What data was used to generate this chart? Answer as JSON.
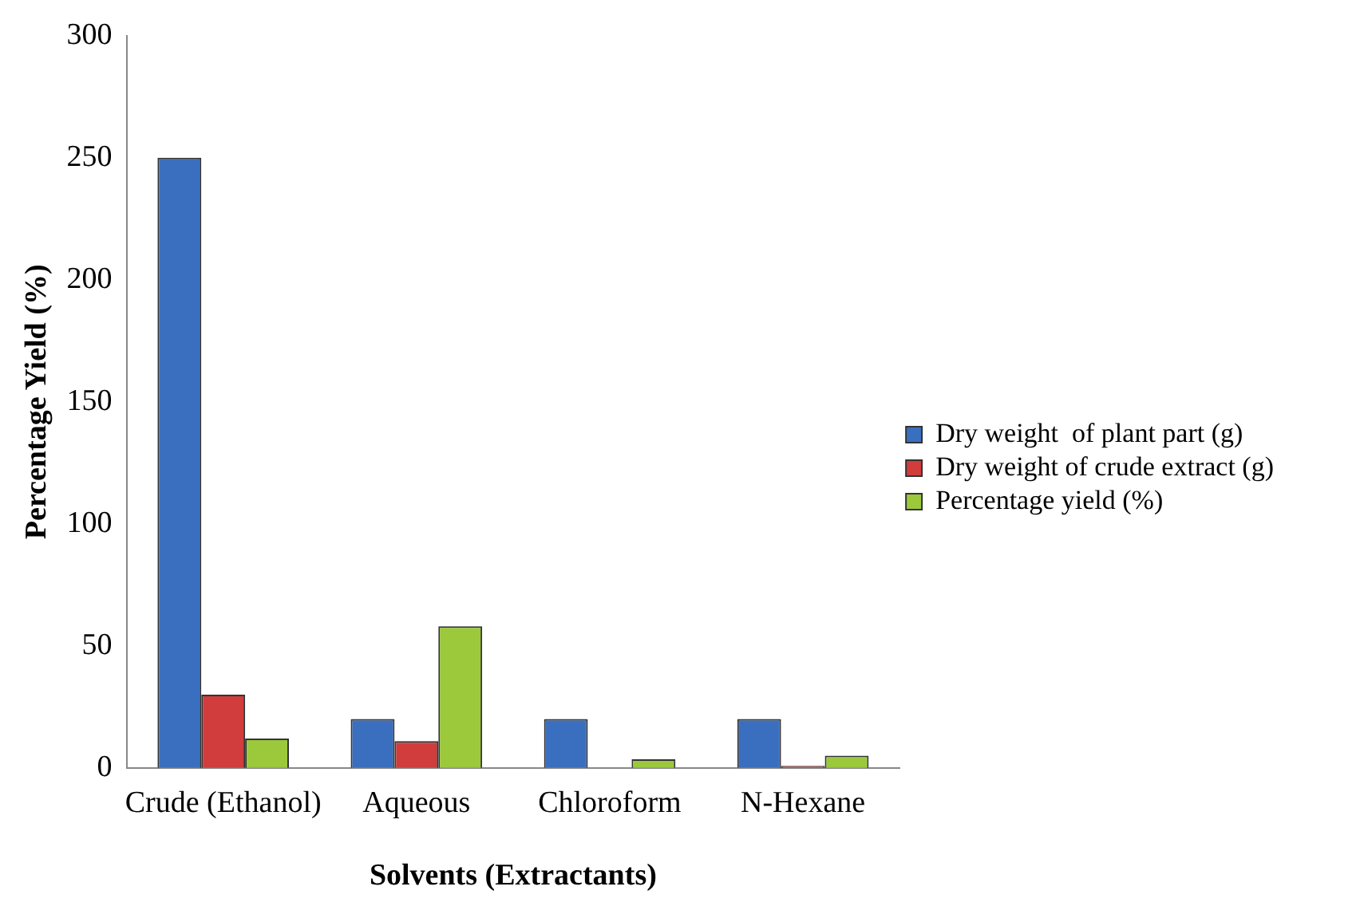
{
  "chart_data": {
    "type": "bar",
    "xlabel": "Solvents (Extractants)",
    "ylabel": "Percentage Yield (%)",
    "categories": [
      "Crude (Ethanol)",
      "Aqueous",
      "Chloroform",
      "N-Hexane"
    ],
    "series": [
      {
        "name": "Dry weight  of plant part (g)",
        "color": "#3a6fbf",
        "values": [
          250,
          20,
          20,
          20
        ]
      },
      {
        "name": "Dry weight of crude extract (g)",
        "color": "#d13c3c",
        "values": [
          30,
          11,
          0,
          0.8
        ]
      },
      {
        "name": "Percentage yield (%)",
        "color": "#9bc93b",
        "values": [
          12,
          58,
          3.5,
          5
        ]
      }
    ],
    "ylim": [
      0,
      300
    ],
    "yticks": [
      0,
      50,
      100,
      150,
      200,
      250,
      300
    ],
    "grid": false,
    "legend": "right"
  }
}
